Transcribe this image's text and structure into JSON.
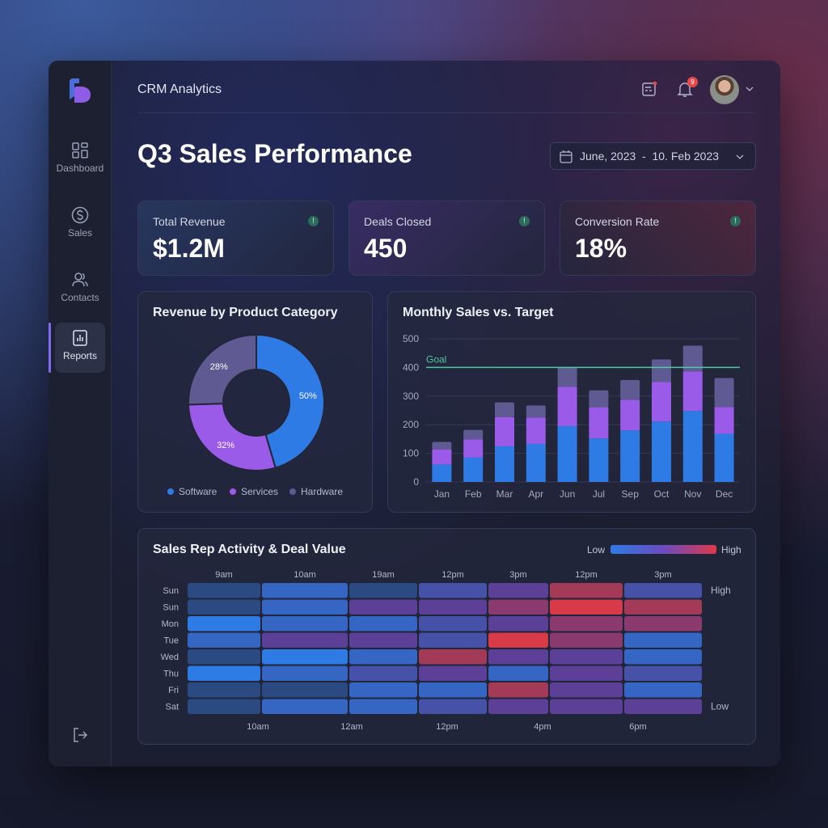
{
  "app": {
    "title": "CRM Analytics",
    "notification_count": "9"
  },
  "sidebar": {
    "items": [
      {
        "label": "Dashboard",
        "icon": "grid-icon"
      },
      {
        "label": "Sales",
        "icon": "dollar-icon"
      },
      {
        "label": "Contacts",
        "icon": "users-icon"
      },
      {
        "label": "Reports",
        "icon": "report-icon",
        "active": true
      }
    ]
  },
  "page": {
    "title": "Q3 Sales Performance",
    "date_range": "June, 2023  -  10. Feb 2023"
  },
  "kpis": [
    {
      "label": "Total Revenue",
      "value": "$1.2M",
      "info": "!"
    },
    {
      "label": "Deals Closed",
      "value": "450",
      "info": "!"
    },
    {
      "label": "Conversion Rate",
      "value": "18%",
      "info": "!"
    }
  ],
  "colors": {
    "software": "#2f7be6",
    "services": "#9a5be8",
    "hardware": "#5f5a92",
    "goal": "#4fc9a0",
    "heat_low": "#2f7be6",
    "heat_high": "#e0384a"
  },
  "chart_data": [
    {
      "type": "pie",
      "title": "Revenue by Product Category",
      "categories": [
        "Software",
        "Services",
        "Hardware"
      ],
      "values": [
        50,
        32,
        28
      ],
      "labels": [
        "50%",
        "32%",
        "28%"
      ],
      "donut": true,
      "legend": "bottom"
    },
    {
      "type": "bar",
      "stacked": true,
      "title": "Monthly Sales vs. Target",
      "categories": [
        "Jan",
        "Feb",
        "Mar",
        "Apr",
        "Jun",
        "Jul",
        "Sep",
        "Oct",
        "Nov",
        "Dec"
      ],
      "series": [
        {
          "values": [
            61,
            85,
            124,
            133,
            195,
            152,
            180,
            211,
            248,
            168
          ]
        },
        {
          "values": [
            53,
            64,
            102,
            92,
            137,
            109,
            107,
            138,
            138,
            94
          ]
        },
        {
          "values": [
            26,
            33,
            52,
            42,
            69,
            59,
            69,
            79,
            90,
            101
          ]
        }
      ],
      "ylim": [
        0,
        500
      ],
      "yticks": [
        0,
        100,
        200,
        300,
        400,
        500
      ],
      "grid": true,
      "goal": {
        "label": "Goal",
        "value": 400
      }
    },
    {
      "type": "heatmap",
      "title": "Sales Rep Activity & Deal Value",
      "scale_low": "Low",
      "scale_high": "High",
      "side_labels": [
        "High",
        "Low"
      ],
      "columns_top": [
        "9am",
        "10am",
        "19am",
        "12pm",
        "3pm",
        "12pm",
        "3pm"
      ],
      "columns_bottom": [
        "10am",
        "12am",
        "12pm",
        "4pm",
        "6pm"
      ],
      "rows": [
        "Sun",
        "Sun",
        "Mon",
        "Tue",
        "Wed",
        "Thu",
        "Fri",
        "Sat"
      ],
      "values": [
        [
          0,
          2,
          0,
          3,
          4,
          6,
          3
        ],
        [
          0,
          2,
          4,
          4,
          5,
          7,
          6
        ],
        [
          1,
          2,
          2,
          3,
          4,
          5,
          5
        ],
        [
          2,
          4,
          4,
          3,
          7,
          5,
          2
        ],
        [
          0,
          1,
          2,
          6,
          4,
          4,
          2
        ],
        [
          1,
          2,
          3,
          4,
          2,
          4,
          3
        ],
        [
          0,
          0,
          2,
          2,
          6,
          4,
          2
        ],
        [
          0,
          2,
          2,
          3,
          4,
          4,
          4
        ]
      ],
      "vrange": [
        0,
        7
      ]
    }
  ]
}
